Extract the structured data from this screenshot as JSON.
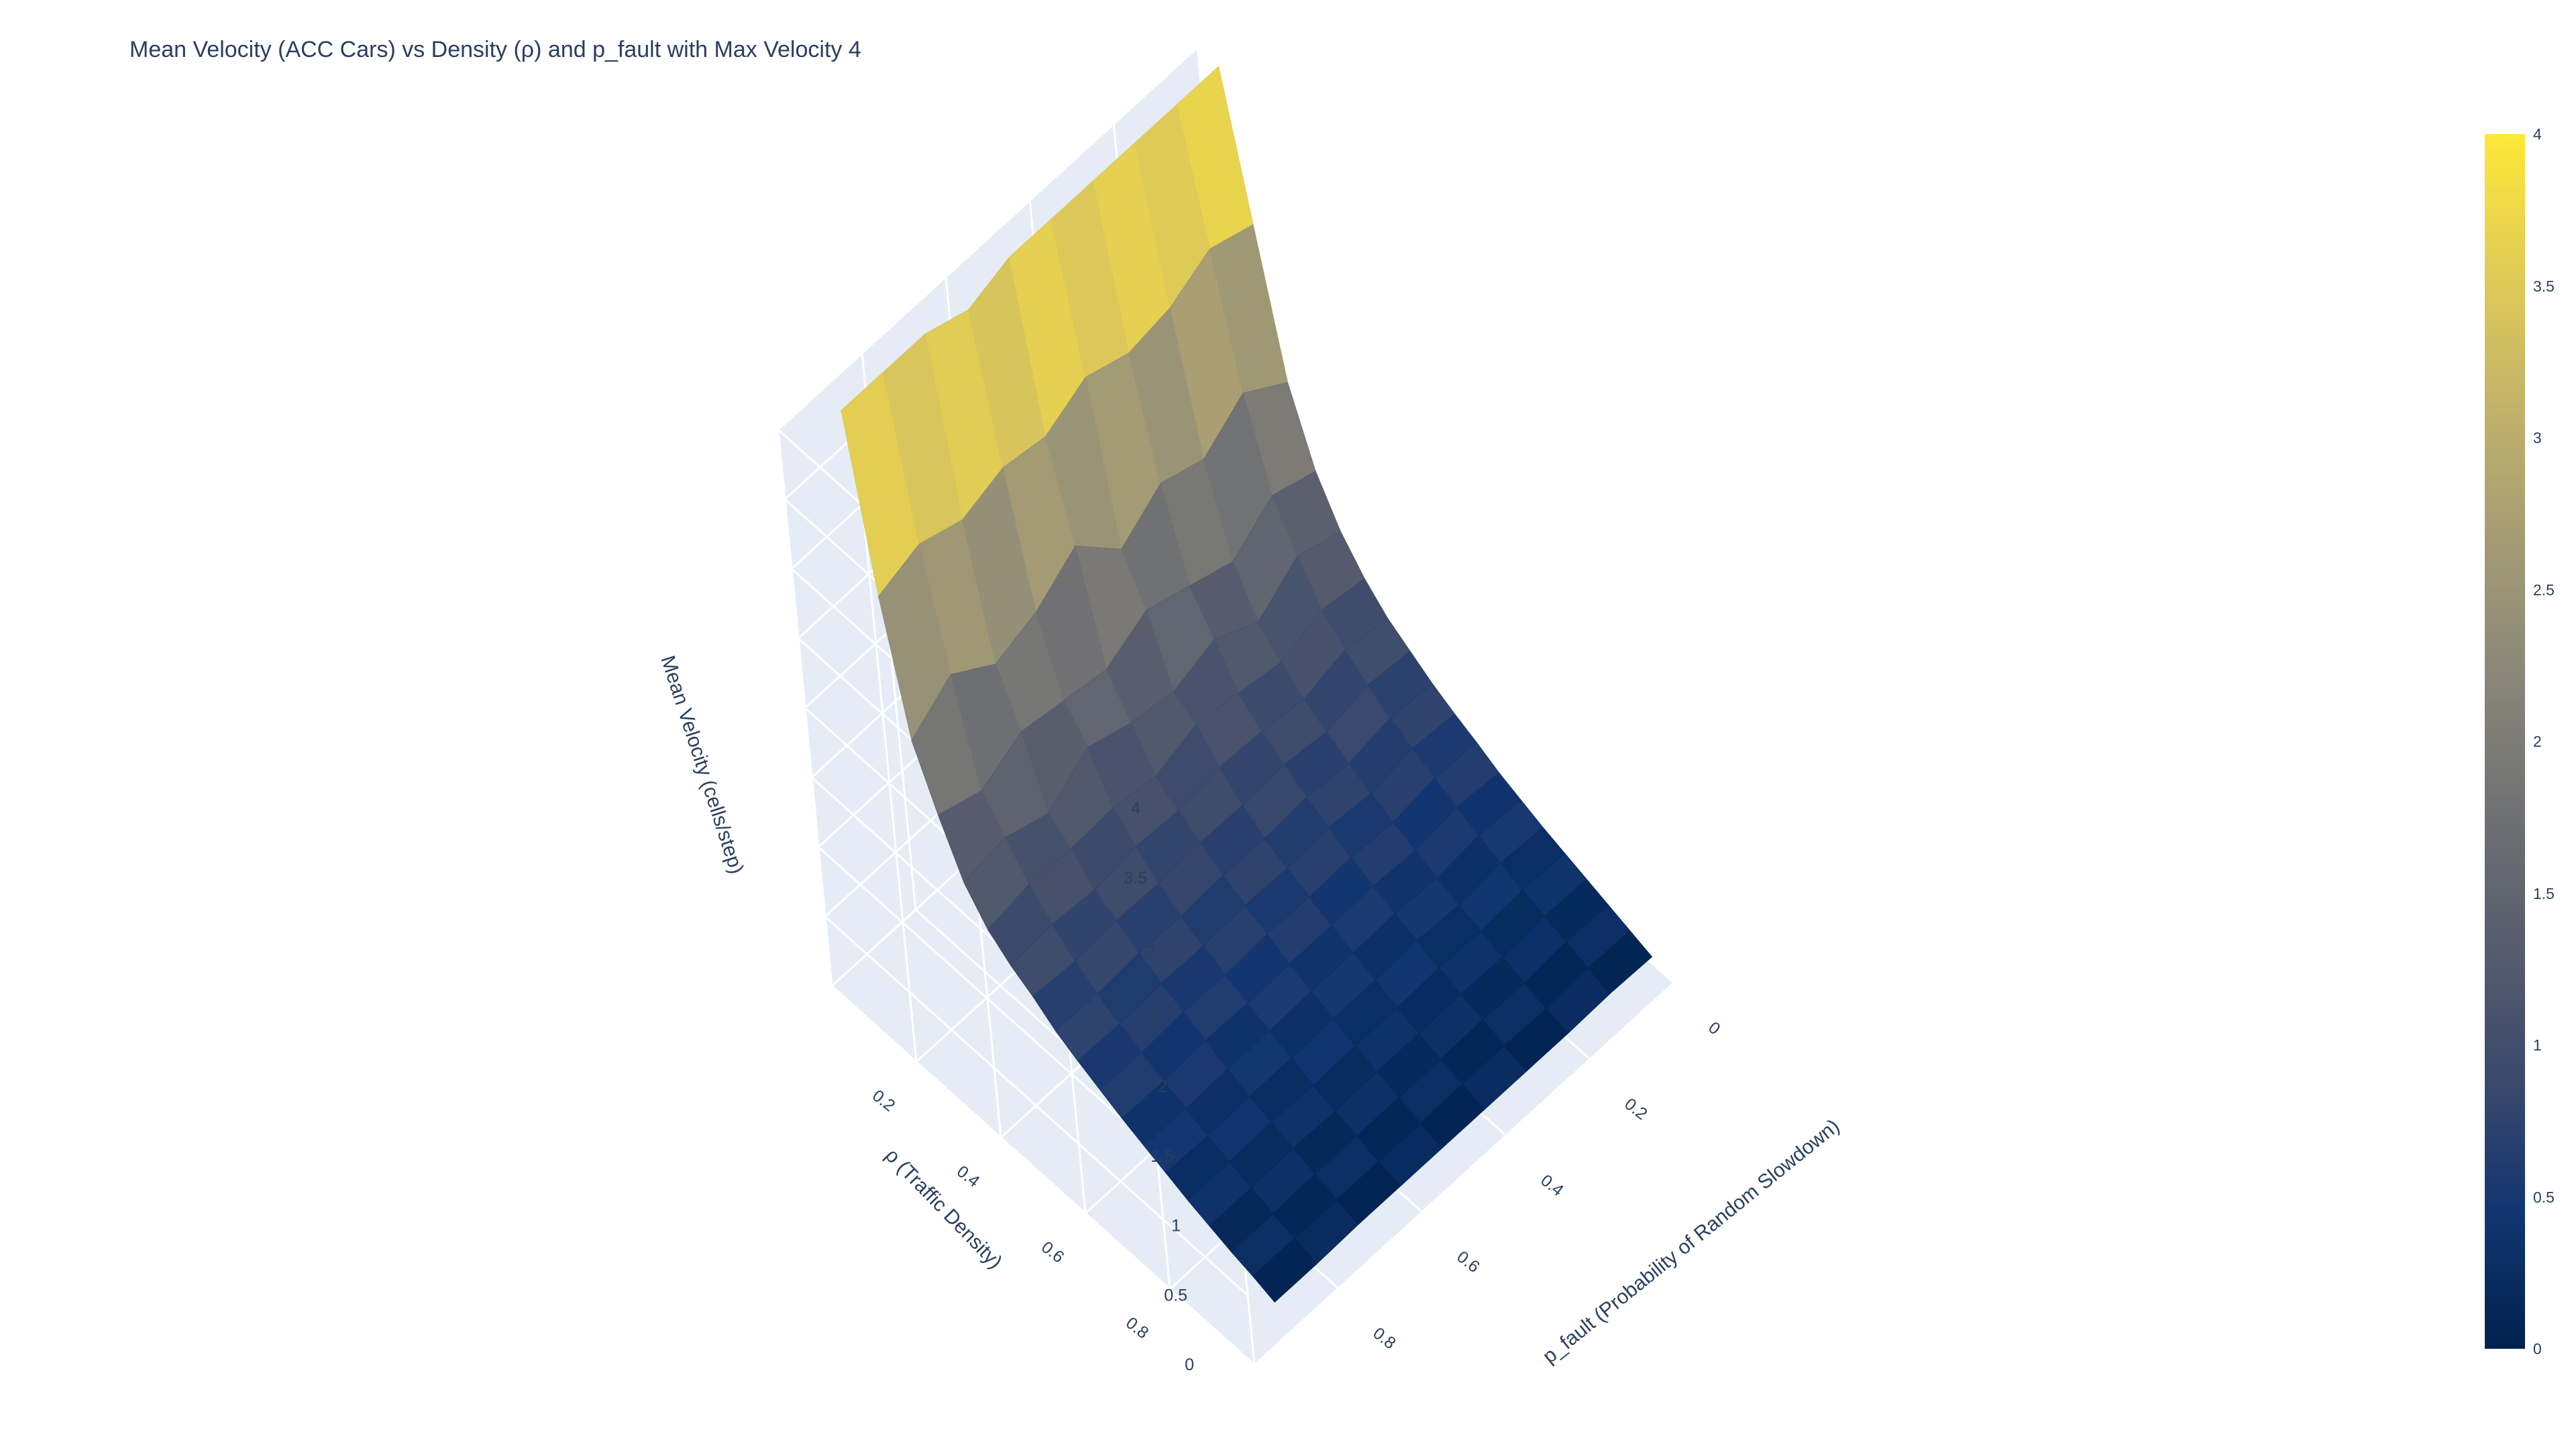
{
  "title": "Mean Velocity (ACC Cars) vs Density (ρ) and p_fault with Max Velocity 4",
  "colorbar": {
    "colorscale": "cividis",
    "colors": [
      "#00224e",
      "#123570",
      "#3b496c",
      "#575d6d",
      "#707173",
      "#8a8779",
      "#a59c74",
      "#c3b369",
      "#e1cc55",
      "#fee838"
    ],
    "ticks": [
      "0",
      "0.5",
      "1",
      "1.5",
      "2",
      "2.5",
      "3",
      "3.5",
      "4"
    ]
  },
  "chart_data": {
    "type": "surface",
    "title": "Mean Velocity (ACC Cars) vs Density (ρ) and p_fault with Max Velocity 4",
    "xlabel": "p_fault (Probability of Random Slowdown)",
    "ylabel": "ρ (Traffic Density)",
    "zlabel": "Mean Velocity (cells/step)",
    "x_ticks": [
      "0",
      "0.2",
      "0.4",
      "0.6",
      "0.8"
    ],
    "y_ticks": [
      "0.2",
      "0.4",
      "0.6",
      "0.8"
    ],
    "z_ticks": [
      "0",
      "0.5",
      "1",
      "1.5",
      "2",
      "2.5",
      "3",
      "3.5",
      "4"
    ],
    "zlim": [
      0,
      4
    ],
    "rho": [
      0.05,
      0.1,
      0.15,
      0.2,
      0.25,
      0.3,
      0.35,
      0.4,
      0.45,
      0.5,
      0.55,
      0.6,
      0.65,
      0.7,
      0.75,
      0.8,
      0.85,
      0.9,
      0.95
    ],
    "p_fault": [
      0,
      0.1,
      0.2,
      0.3,
      0.4,
      0.5,
      0.6,
      0.7,
      0.8,
      0.9
    ],
    "description_of_values": "rows = rho, columns = p_fault",
    "mean_velocity": [
      [
        4.0,
        4.0,
        4.0,
        4.0,
        4.0,
        4.0,
        3.9,
        4.0,
        4.0,
        4.0
      ],
      [
        3.0,
        3.1,
        2.95,
        2.9,
        3.0,
        2.85,
        2.9,
        2.8,
        2.9,
        2.8
      ],
      [
        2.0,
        2.2,
        2.0,
        2.1,
        1.9,
        2.2,
        2.0,
        1.9,
        2.1,
        1.9
      ],
      [
        1.5,
        1.6,
        1.4,
        1.5,
        1.6,
        1.45,
        1.5,
        1.55,
        1.4,
        1.5
      ],
      [
        1.2,
        1.3,
        1.1,
        1.25,
        1.15,
        1.2,
        1.3,
        1.1,
        1.2,
        1.15
      ],
      [
        1.0,
        1.05,
        0.95,
        1.0,
        1.05,
        0.95,
        1.0,
        0.98,
        1.0,
        0.95
      ],
      [
        0.85,
        0.9,
        0.82,
        0.86,
        0.88,
        0.84,
        0.86,
        0.82,
        0.85,
        0.83
      ],
      [
        0.75,
        0.78,
        0.72,
        0.76,
        0.74,
        0.75,
        0.73,
        0.74,
        0.72,
        0.74
      ],
      [
        0.65,
        0.68,
        0.63,
        0.66,
        0.64,
        0.65,
        0.63,
        0.64,
        0.62,
        0.63
      ],
      [
        0.57,
        0.6,
        0.55,
        0.58,
        0.56,
        0.57,
        0.55,
        0.56,
        0.54,
        0.55
      ],
      [
        0.5,
        0.52,
        0.48,
        0.5,
        0.49,
        0.5,
        0.48,
        0.49,
        0.47,
        0.48
      ],
      [
        0.42,
        0.45,
        0.41,
        0.43,
        0.42,
        0.42,
        0.41,
        0.42,
        0.4,
        0.41
      ],
      [
        0.36,
        0.38,
        0.35,
        0.37,
        0.36,
        0.36,
        0.35,
        0.35,
        0.34,
        0.35
      ],
      [
        0.3,
        0.32,
        0.29,
        0.31,
        0.3,
        0.3,
        0.29,
        0.29,
        0.28,
        0.29
      ],
      [
        0.25,
        0.26,
        0.24,
        0.25,
        0.24,
        0.24,
        0.23,
        0.24,
        0.23,
        0.23
      ],
      [
        0.2,
        0.21,
        0.19,
        0.2,
        0.19,
        0.19,
        0.18,
        0.19,
        0.18,
        0.18
      ],
      [
        0.15,
        0.16,
        0.14,
        0.15,
        0.14,
        0.14,
        0.14,
        0.14,
        0.13,
        0.13
      ],
      [
        0.1,
        0.11,
        0.09,
        0.1,
        0.1,
        0.09,
        0.09,
        0.09,
        0.09,
        0.09
      ],
      [
        0.05,
        0.06,
        0.05,
        0.05,
        0.05,
        0.05,
        0.05,
        0.05,
        0.04,
        0.04
      ]
    ]
  }
}
